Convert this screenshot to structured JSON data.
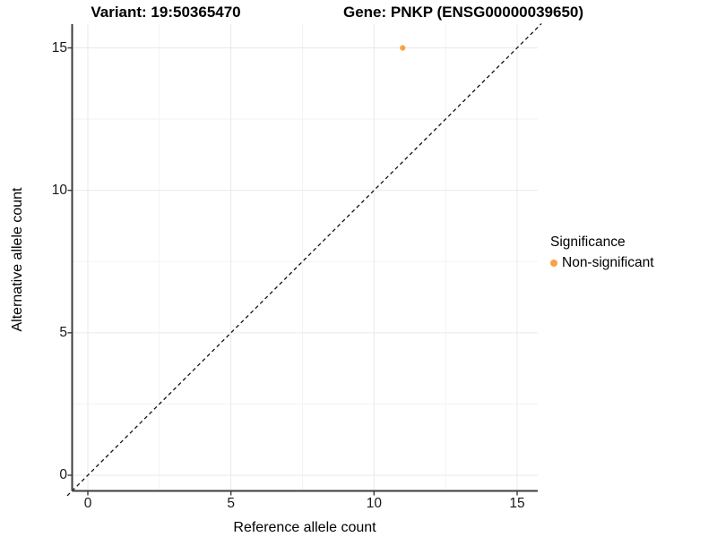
{
  "titles": {
    "variant": "Variant: 19:50365470",
    "gene": "Gene: PNKP (ENSG00000039650)"
  },
  "axes": {
    "x": {
      "label": "Reference allele count"
    },
    "y": {
      "label": "Alternative allele count"
    }
  },
  "legend": {
    "title": "Significance",
    "items": [
      {
        "label": "Non-significant",
        "color": "#F9A242"
      }
    ]
  },
  "colors": {
    "point": "#F9A242",
    "grid_major": "#E9E9E9",
    "grid_minor": "#F3F3F3",
    "axis": "#3C3C3C",
    "reference_line": "#111111",
    "background": "#FFFFFF"
  },
  "chart_data": {
    "type": "scatter",
    "title": "Variant: 19:50365470 — Gene: PNKP (ENSG00000039650)",
    "xlabel": "Reference allele count",
    "ylabel": "Alternative allele count",
    "xlim": [
      -0.72,
      15.85
    ],
    "ylim": [
      -0.72,
      15.85
    ],
    "xticks": [
      0,
      5,
      10,
      15
    ],
    "yticks": [
      0,
      5,
      10,
      15
    ],
    "minor_xticks": [
      2.5,
      7.5,
      12.5
    ],
    "minor_yticks": [
      2.5,
      7.5,
      12.5
    ],
    "grid": "major+minor",
    "legend_position": "right",
    "series": [
      {
        "name": "Non-significant",
        "color": "#F9A242",
        "points": [
          {
            "x": 11,
            "y": 15
          }
        ]
      }
    ],
    "reference_line": {
      "equation": "y = x",
      "style": "dashed",
      "color": "#111111"
    }
  }
}
